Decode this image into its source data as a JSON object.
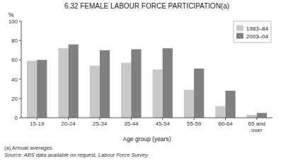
{
  "chart_data": {
    "type": "bar",
    "title": "6.32   FEMALE LABOUR FORCE PARTICIPATION(a)",
    "categories": [
      "15-19",
      "20-24",
      "25-34",
      "35-44",
      "45-54",
      "55-59",
      "60-64",
      "65 and\nover"
    ],
    "series": [
      {
        "name": "1983–84",
        "color": "#c8c8c8",
        "values": [
          59,
          72,
          54,
          57,
          50,
          29,
          12,
          3
        ]
      },
      {
        "name": "2003–04",
        "color": "#808080",
        "values": [
          60,
          76,
          70,
          71,
          72,
          51,
          28,
          5
        ]
      }
    ],
    "x_label": "Age group (years)",
    "y_label": "%",
    "ylim": [
      0,
      100
    ],
    "yticks": [
      0,
      20,
      40,
      60,
      80,
      100
    ],
    "legend": "upper-right",
    "grid": false,
    "annotations": [
      "(a) Annual averages.",
      "Source: ABS data available on request, Labour Force Survey."
    ]
  }
}
